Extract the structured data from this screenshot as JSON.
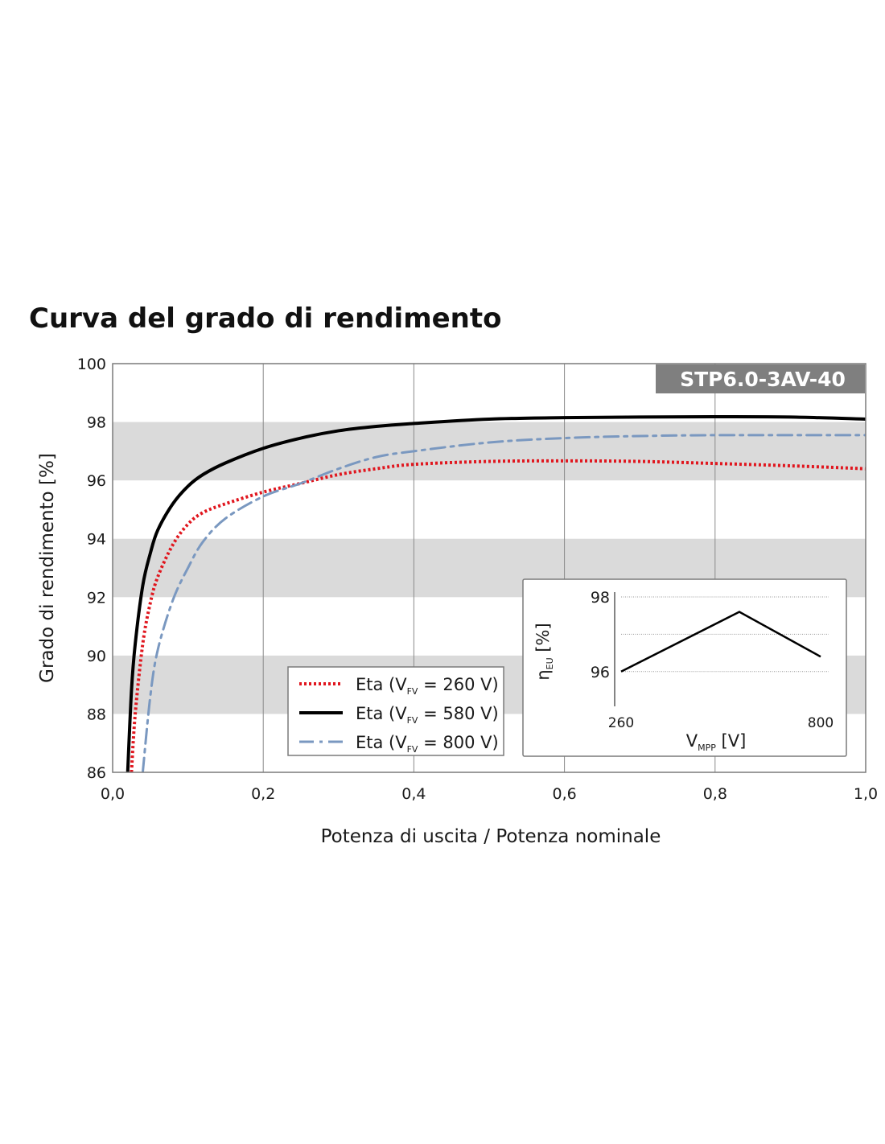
{
  "title": "Curva del grado di rendimento",
  "chart_data": {
    "type": "line",
    "title": "Curva del grado di rendimento",
    "badge": "STP6.0-3AV-40",
    "xlabel": "Potenza di uscita / Potenza nominale",
    "ylabel": "Grado di rendimento [%]",
    "xlim": [
      0,
      1.0
    ],
    "ylim": [
      86,
      100
    ],
    "x_ticks": [
      "0,0",
      "0,2",
      "0,4",
      "0,6",
      "0,8",
      "1,0"
    ],
    "x_tick_values": [
      0,
      0.2,
      0.4,
      0.6,
      0.8,
      1.0
    ],
    "y_ticks": [
      "86",
      "88",
      "90",
      "92",
      "94",
      "96",
      "98",
      "100"
    ],
    "y_tick_values": [
      86,
      88,
      90,
      92,
      94,
      96,
      98,
      100
    ],
    "grid": "vertical lines; alternating grey horizontal bands",
    "legend_position": "bottom-center",
    "series": [
      {
        "name": "Eta (VFV = 260 V)",
        "label_prefix": "Eta (V",
        "label_sub": "FV",
        "label_suffix": " = 260 V)",
        "color": "#e0161e",
        "style": "dotted",
        "x": [
          0.025,
          0.03,
          0.04,
          0.05,
          0.06,
          0.08,
          0.1,
          0.12,
          0.15,
          0.2,
          0.25,
          0.3,
          0.35,
          0.4,
          0.5,
          0.6,
          0.7,
          0.8,
          0.9,
          1.0
        ],
        "y": [
          86.0,
          88.0,
          90.4,
          91.8,
          92.7,
          93.8,
          94.5,
          94.9,
          95.2,
          95.6,
          95.9,
          96.2,
          96.4,
          96.55,
          96.65,
          96.67,
          96.65,
          96.58,
          96.5,
          96.4
        ]
      },
      {
        "name": "Eta (VFV = 580 V)",
        "label_prefix": "Eta (V",
        "label_sub": "FV",
        "label_suffix": " = 580 V)",
        "color": "#000000",
        "style": "solid",
        "x": [
          0.02,
          0.025,
          0.03,
          0.04,
          0.05,
          0.06,
          0.08,
          0.1,
          0.12,
          0.15,
          0.2,
          0.25,
          0.3,
          0.35,
          0.4,
          0.5,
          0.6,
          0.7,
          0.8,
          0.9,
          1.0
        ],
        "y": [
          86.0,
          88.8,
          90.4,
          92.4,
          93.5,
          94.3,
          95.2,
          95.8,
          96.2,
          96.6,
          97.1,
          97.45,
          97.7,
          97.85,
          97.95,
          98.1,
          98.15,
          98.17,
          98.18,
          98.17,
          98.1
        ]
      },
      {
        "name": "Eta (VFV = 800 V)",
        "label_prefix": "Eta (V",
        "label_sub": "FV",
        "label_suffix": " = 800 V)",
        "color": "#7a98c0",
        "style": "dashdot",
        "x": [
          0.04,
          0.05,
          0.06,
          0.08,
          0.1,
          0.12,
          0.15,
          0.2,
          0.25,
          0.3,
          0.35,
          0.4,
          0.5,
          0.6,
          0.7,
          0.8,
          0.9,
          1.0
        ],
        "y": [
          86.0,
          88.6,
          90.2,
          91.9,
          93.0,
          93.9,
          94.7,
          95.45,
          95.9,
          96.4,
          96.8,
          97.0,
          97.3,
          97.45,
          97.52,
          97.55,
          97.55,
          97.55
        ]
      }
    ],
    "inset": {
      "type": "line",
      "xlabel_main": "V",
      "xlabel_sub": "MPP",
      "xlabel_suffix": " [V]",
      "ylabel_main": "η",
      "ylabel_sub": "EU",
      "ylabel_suffix": " [%]",
      "x_ticks": [
        "260",
        "800"
      ],
      "x_tick_values": [
        260,
        800
      ],
      "y_ticks": [
        "96",
        "98"
      ],
      "y_tick_values": [
        96,
        98
      ],
      "xlim": [
        260,
        800
      ],
      "ylim": [
        95.5,
        98.0
      ],
      "gridlines_y": [
        96,
        97,
        98
      ],
      "x": [
        260,
        580,
        800
      ],
      "y": [
        96.0,
        97.6,
        96.4
      ]
    }
  }
}
